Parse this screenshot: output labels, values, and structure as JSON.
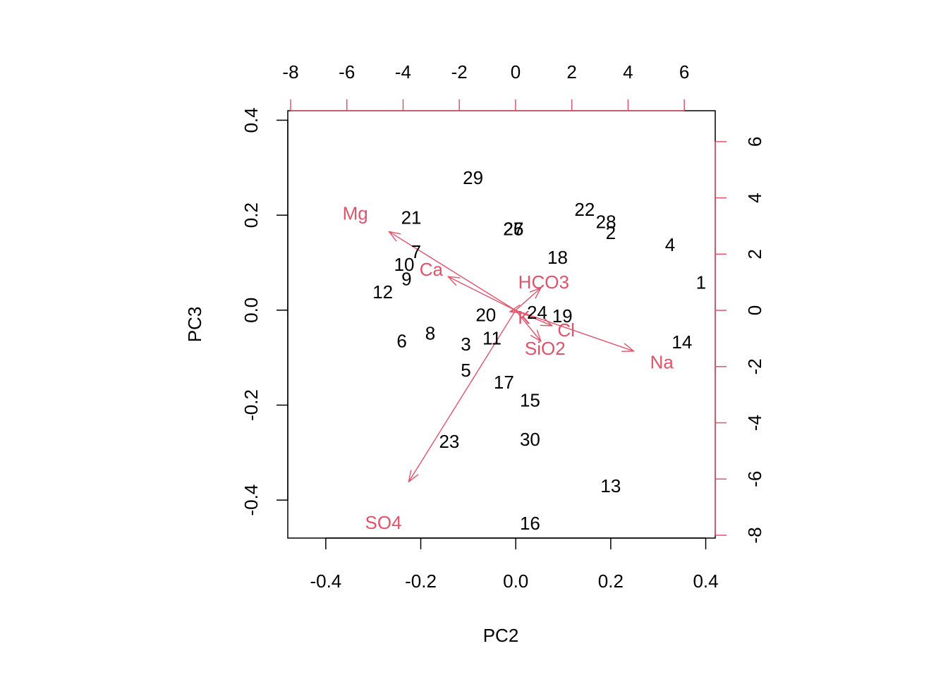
{
  "chart_data": {
    "type": "scatter",
    "subtype": "biplot",
    "title": "",
    "xlabel": "PC2",
    "ylabel": "PC3",
    "xlim": [
      -0.48,
      0.42
    ],
    "ylim": [
      -0.48,
      0.42
    ],
    "x_ticks": [
      -0.4,
      -0.2,
      0.0,
      0.2,
      0.4
    ],
    "x_tick_labels": [
      "-0.4",
      "-0.2",
      "0.0",
      "0.2",
      "0.4"
    ],
    "y_ticks": [
      -0.4,
      -0.2,
      0.0,
      0.2,
      0.4
    ],
    "y_tick_labels": [
      "-0.4",
      "-0.2",
      "0.0",
      "0.2",
      "0.4"
    ],
    "top_ticks": [
      -8,
      -6,
      -4,
      -2,
      0,
      2,
      4,
      6
    ],
    "top_tick_labels": [
      "-8",
      "-6",
      "-4",
      "-2",
      "0",
      "2",
      "4",
      "6"
    ],
    "right_ticks": [
      -8,
      -6,
      -4,
      -2,
      0,
      2,
      4,
      6
    ],
    "right_tick_labels": [
      "-8",
      "-6",
      "-4",
      "-2",
      "0",
      "2",
      "4",
      "6"
    ],
    "secondary_lim": [
      -8.1,
      7.1
    ],
    "grid": false,
    "observation_color": "#000000",
    "variable_color": "#DF536B",
    "observations": [
      {
        "label": "1",
        "x": 0.39,
        "y": 0.055
      },
      {
        "label": "2",
        "x": 0.2,
        "y": 0.16
      },
      {
        "label": "3",
        "x": -0.105,
        "y": -0.075
      },
      {
        "label": "4",
        "x": 0.325,
        "y": 0.135
      },
      {
        "label": "5",
        "x": -0.105,
        "y": -0.13
      },
      {
        "label": "6",
        "x": -0.24,
        "y": -0.068
      },
      {
        "label": "7",
        "x": -0.21,
        "y": 0.12
      },
      {
        "label": "8",
        "x": -0.18,
        "y": -0.052
      },
      {
        "label": "9",
        "x": -0.23,
        "y": 0.063
      },
      {
        "label": "10",
        "x": -0.235,
        "y": 0.093
      },
      {
        "label": "11",
        "x": -0.05,
        "y": -0.062
      },
      {
        "label": "12",
        "x": -0.28,
        "y": 0.035
      },
      {
        "label": "13",
        "x": 0.2,
        "y": -0.373
      },
      {
        "label": "14",
        "x": 0.35,
        "y": -0.07
      },
      {
        "label": "15",
        "x": 0.03,
        "y": -0.193
      },
      {
        "label": "16",
        "x": 0.03,
        "y": -0.452
      },
      {
        "label": "17",
        "x": -0.025,
        "y": -0.155
      },
      {
        "label": "18",
        "x": 0.088,
        "y": 0.108
      },
      {
        "label": "19",
        "x": 0.098,
        "y": -0.015
      },
      {
        "label": "20",
        "x": -0.063,
        "y": -0.013
      },
      {
        "label": "21",
        "x": -0.22,
        "y": 0.192
      },
      {
        "label": "22",
        "x": 0.145,
        "y": 0.209
      },
      {
        "label": "23",
        "x": -0.14,
        "y": -0.28
      },
      {
        "label": "24",
        "x": 0.045,
        "y": -0.008
      },
      {
        "label": "25",
        "x": -0.005,
        "y": 0.168
      },
      {
        "label": "26",
        "x": -0.005,
        "y": 0.168
      },
      {
        "label": "27",
        "x": -0.005,
        "y": 0.168
      },
      {
        "label": "28",
        "x": 0.19,
        "y": 0.183
      },
      {
        "label": "29",
        "x": -0.09,
        "y": 0.276
      },
      {
        "label": "30",
        "x": 0.03,
        "y": -0.275
      }
    ],
    "variables": [
      {
        "name": "Mg",
        "x": -4.5,
        "y": 2.8,
        "label_x": -5.7,
        "label_y": 3.4
      },
      {
        "name": "Ca",
        "x": -2.4,
        "y": 1.2,
        "label_x": -3.0,
        "label_y": 1.4
      },
      {
        "name": "HCO3",
        "x": 0.9,
        "y": 0.8,
        "label_x": 1.0,
        "label_y": 0.95
      },
      {
        "name": "K",
        "x": -0.2,
        "y": -0.05,
        "label_x": 0.3,
        "label_y": -0.3
      },
      {
        "name": "Cl",
        "x": 1.3,
        "y": -0.55,
        "label_x": 1.8,
        "label_y": -0.75
      },
      {
        "name": "SiO2",
        "x": 0.9,
        "y": -1.1,
        "label_x": 1.05,
        "label_y": -1.4
      },
      {
        "name": "Na",
        "x": 4.2,
        "y": -1.45,
        "label_x": 5.2,
        "label_y": -1.9
      },
      {
        "name": "SO4",
        "x": -3.8,
        "y": -6.1,
        "label_x": -4.7,
        "label_y": -7.6
      }
    ]
  }
}
